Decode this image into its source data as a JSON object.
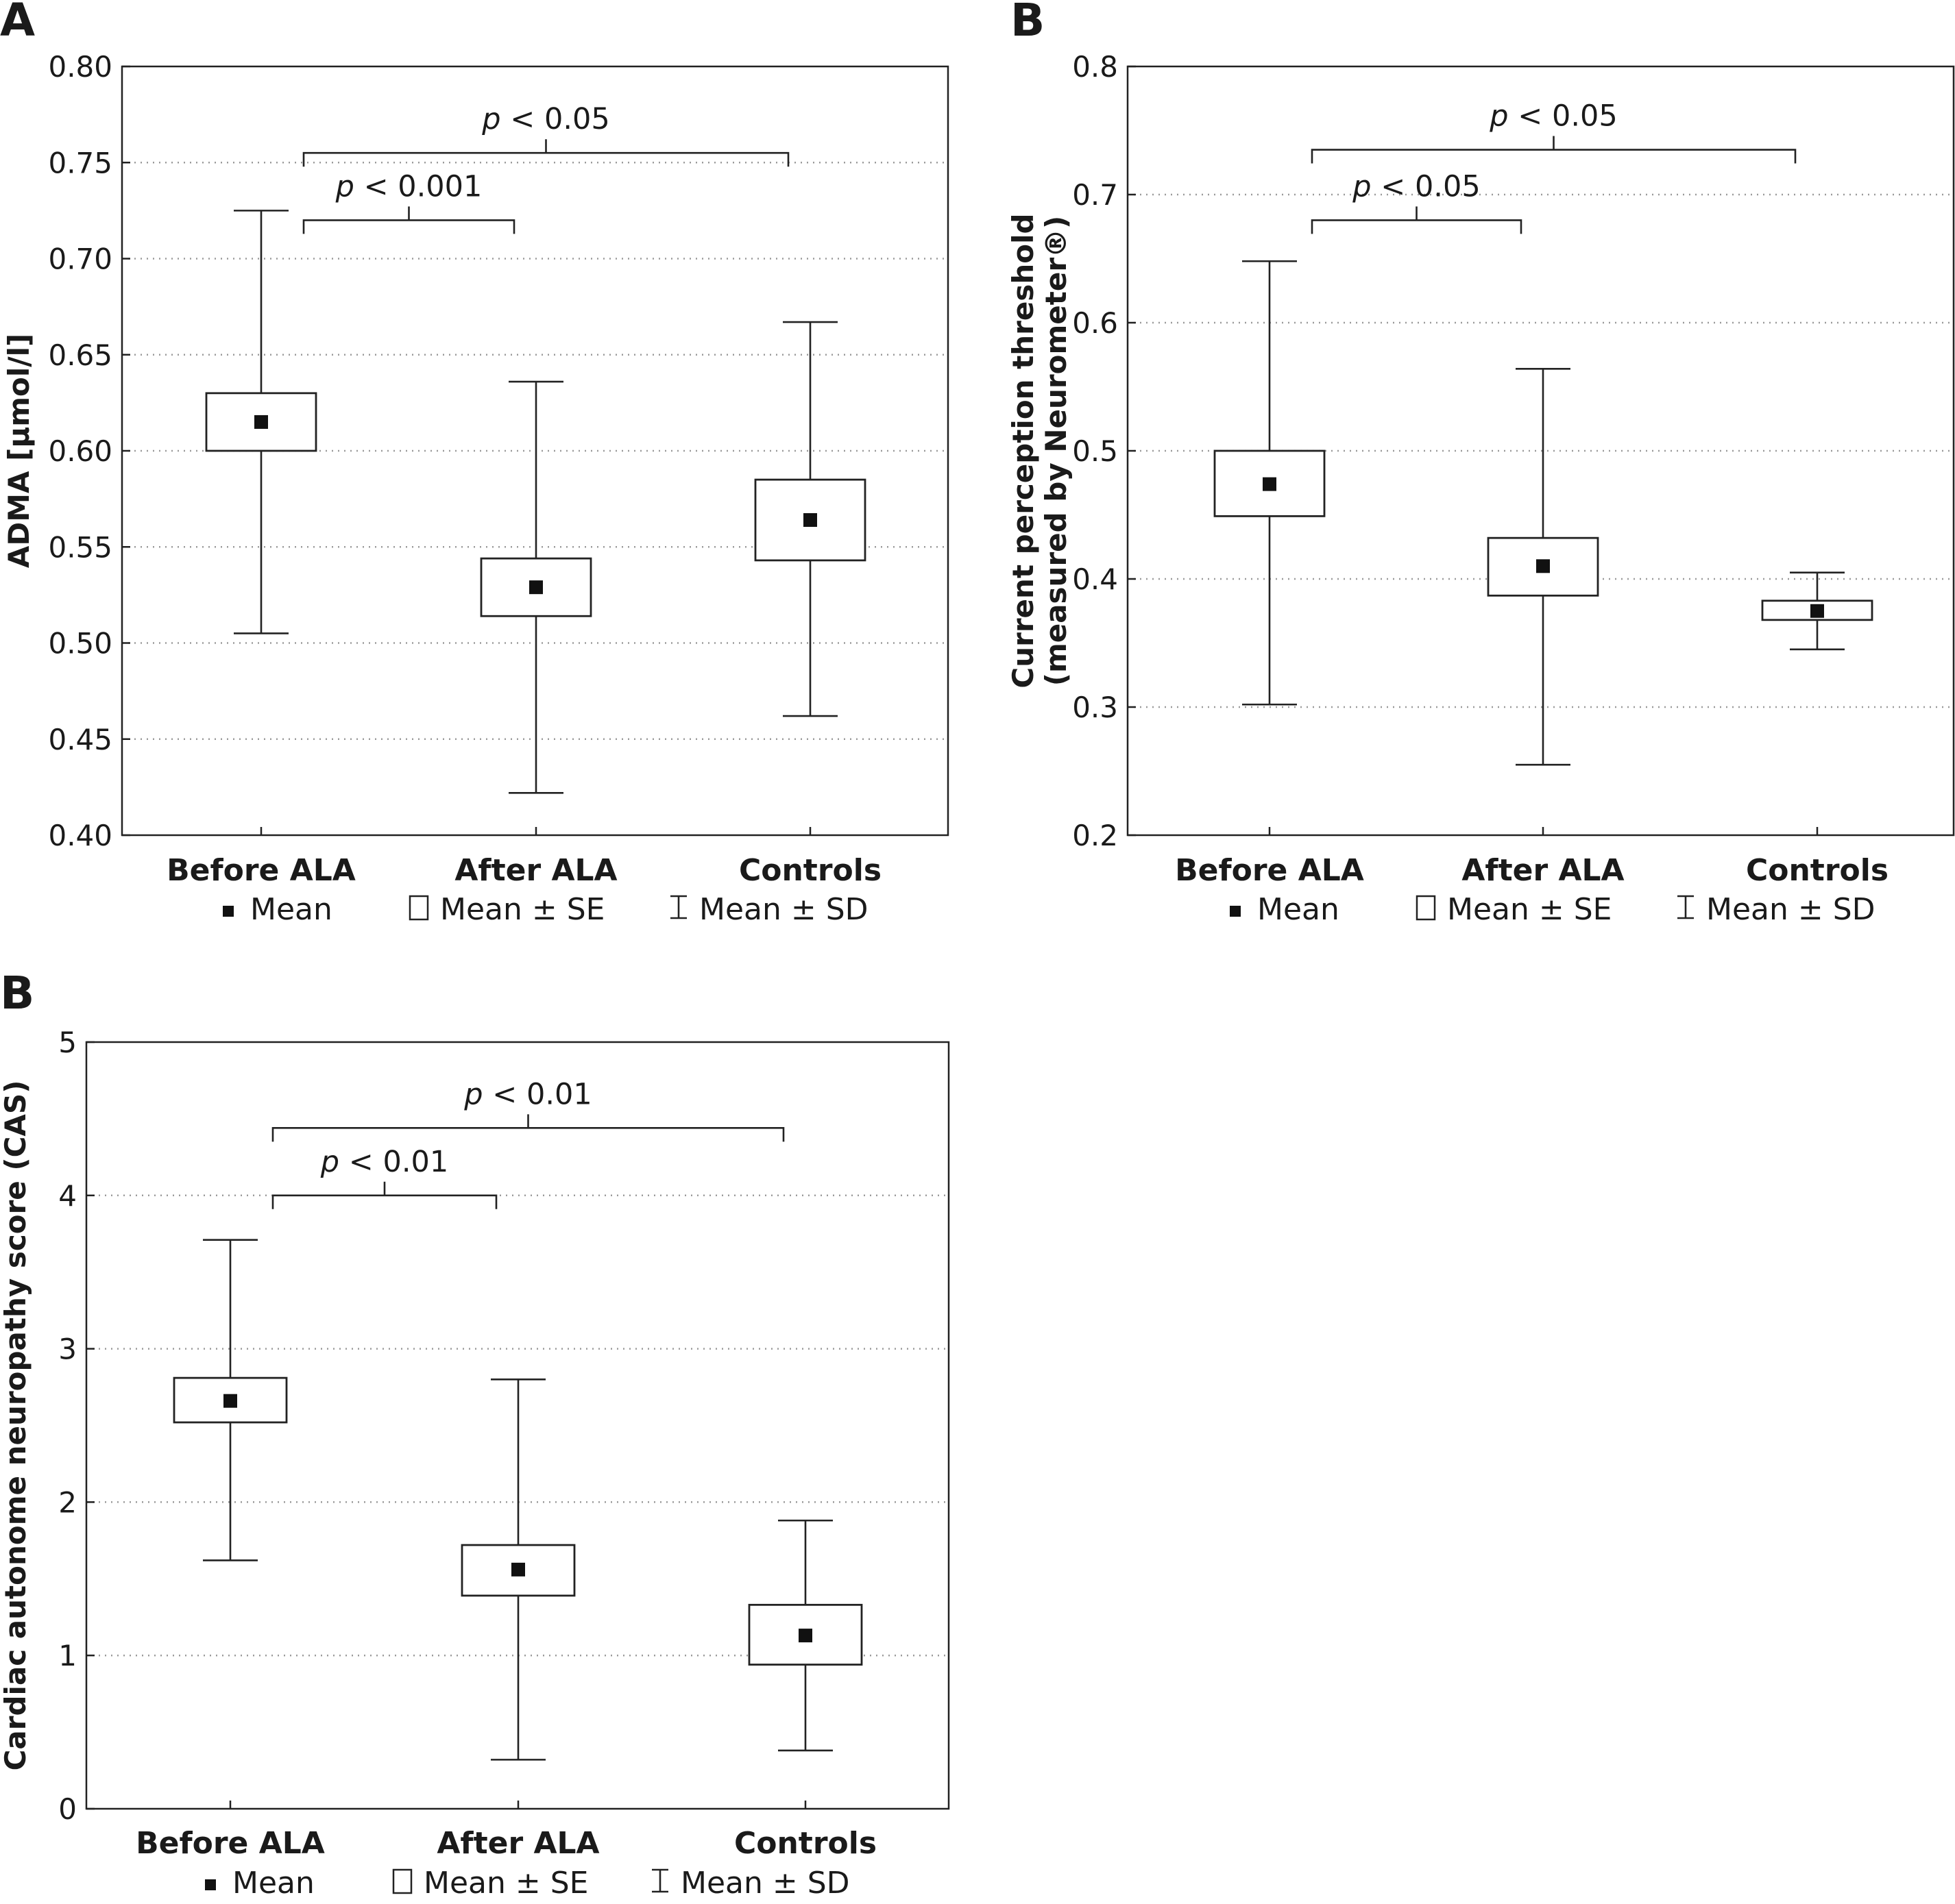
{
  "chart_data": [
    {
      "panel_label": "A",
      "type": "box",
      "ylabel": "ADMA [µmol/l]",
      "ylim": [
        0.4,
        0.8
      ],
      "yticks": [
        "0.80",
        "0.75",
        "0.70",
        "0.65",
        "0.60",
        "0.55",
        "0.50",
        "0.45",
        "0.40"
      ],
      "ytick_values": [
        0.8,
        0.75,
        0.7,
        0.65,
        0.6,
        0.55,
        0.5,
        0.45,
        0.4
      ],
      "grid": "horizontal dotted",
      "categories": [
        "Before ALA",
        "After ALA",
        "Controls"
      ],
      "mean": [
        0.615,
        0.529,
        0.564
      ],
      "se_low": [
        0.6,
        0.514,
        0.543
      ],
      "se_high": [
        0.63,
        0.544,
        0.585
      ],
      "sd_low": [
        0.505,
        0.422,
        0.462
      ],
      "sd_high": [
        0.725,
        0.636,
        0.667
      ],
      "comparisons": [
        {
          "from": 0,
          "to": 1,
          "level": 0.72,
          "p_prefix": "p",
          "p_rest": " < 0.001"
        },
        {
          "from": 0,
          "to": 2,
          "level": 0.755,
          "p_prefix": "p",
          "p_rest": " < 0.05"
        }
      ],
      "legend": [
        "Mean",
        "Mean ± SE",
        "Mean ± SD"
      ],
      "legend_placement": "bottom"
    },
    {
      "panel_label": "B",
      "type": "box",
      "ylabel_line1": "Current perception threshold",
      "ylabel_line2": "(measured by Neurometer®)",
      "ylim": [
        0.2,
        0.8
      ],
      "yticks": [
        "0.8",
        "0.7",
        "0.6",
        "0.5",
        "0.4",
        "0.3",
        "0.2"
      ],
      "ytick_values": [
        0.8,
        0.7,
        0.6,
        0.5,
        0.4,
        0.3,
        0.2
      ],
      "grid": "horizontal dotted",
      "categories": [
        "Before ALA",
        "After ALA",
        "Controls"
      ],
      "mean": [
        0.474,
        0.41,
        0.375
      ],
      "se_low": [
        0.449,
        0.387,
        0.368
      ],
      "se_high": [
        0.5,
        0.432,
        0.383
      ],
      "sd_low": [
        0.302,
        0.255,
        0.345
      ],
      "sd_high": [
        0.648,
        0.564,
        0.405
      ],
      "comparisons": [
        {
          "from": 0,
          "to": 1,
          "level": 0.68,
          "p_prefix": "p",
          "p_rest": " < 0.05"
        },
        {
          "from": 0,
          "to": 2,
          "level": 0.735,
          "p_prefix": "p",
          "p_rest": " < 0.05"
        }
      ],
      "legend": [
        "Mean",
        "Mean ± SE",
        "Mean ± SD"
      ],
      "legend_placement": "bottom"
    },
    {
      "panel_label": "B",
      "type": "box",
      "ylabel": "Cardiac autonome neuropathy score (CAS)",
      "ylim": [
        0,
        5
      ],
      "yticks": [
        "5",
        "4",
        "3",
        "2",
        "1",
        "0"
      ],
      "ytick_values": [
        5,
        4,
        3,
        2,
        1,
        0
      ],
      "grid": "horizontal dotted",
      "categories": [
        "Before ALA",
        "After ALA",
        "Controls"
      ],
      "mean": [
        2.66,
        1.56,
        1.13
      ],
      "se_low": [
        2.52,
        1.39,
        0.94
      ],
      "se_high": [
        2.81,
        1.72,
        1.33
      ],
      "sd_low": [
        1.62,
        0.32,
        0.38
      ],
      "sd_high": [
        3.71,
        2.8,
        1.88
      ],
      "comparisons": [
        {
          "from": 0,
          "to": 1,
          "level": 4.0,
          "p_prefix": "p",
          "p_rest": " < 0.01"
        },
        {
          "from": 0,
          "to": 2,
          "level": 4.44,
          "p_prefix": "p",
          "p_rest": " < 0.01"
        }
      ],
      "legend": [
        "Mean",
        "Mean ± SE",
        "Mean ± SD"
      ],
      "legend_placement": "bottom"
    }
  ]
}
